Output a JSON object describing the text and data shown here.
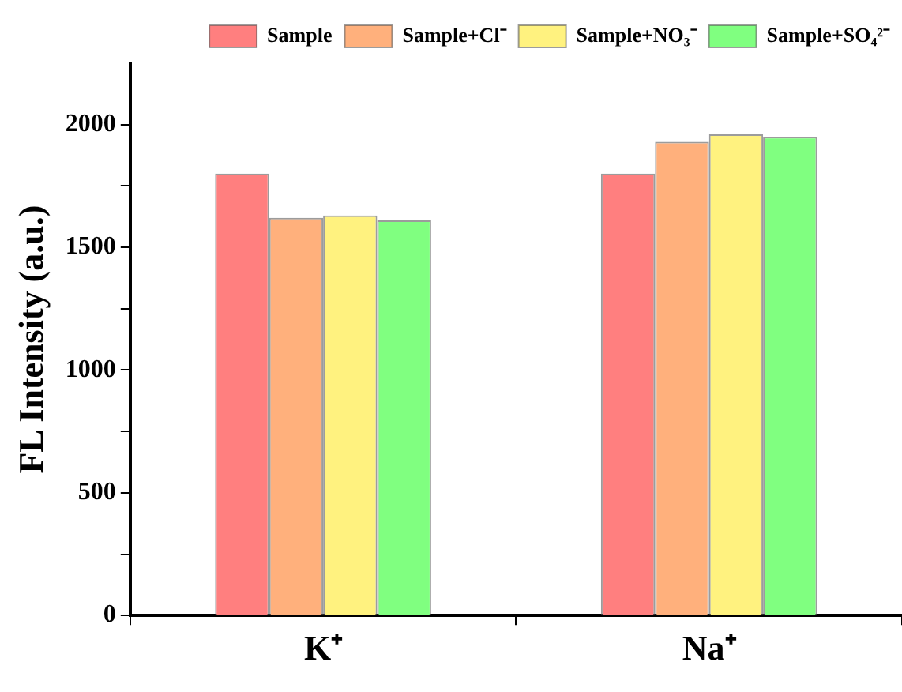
{
  "chart_data": {
    "type": "bar",
    "ylabel": "FL Intensity (a.u.)",
    "categories": [
      "K⁺",
      "Na⁺"
    ],
    "series": [
      {
        "name": "Sample",
        "color": "#ff7f7f",
        "values": [
          1800,
          1800
        ]
      },
      {
        "name": "Sample+Cl⁻",
        "color": "#ffb07c",
        "values": [
          1620,
          1930
        ]
      },
      {
        "name": "Sample+NO₃⁻",
        "color": "#fff27f",
        "values": [
          1630,
          1960
        ]
      },
      {
        "name": "Sample+SO₄²⁻",
        "color": "#80ff80",
        "values": [
          1610,
          1950
        ]
      }
    ],
    "ylim": [
      0,
      2250
    ],
    "yticks": [
      0,
      {
        "value": 250,
        "label": null
      },
      500,
      {
        "value": 750,
        "label": null
      },
      1000,
      {
        "value": 1250,
        "label": null
      },
      1500,
      {
        "value": 1750,
        "label": null
      },
      2000
    ],
    "grid": false,
    "legend": "top"
  }
}
